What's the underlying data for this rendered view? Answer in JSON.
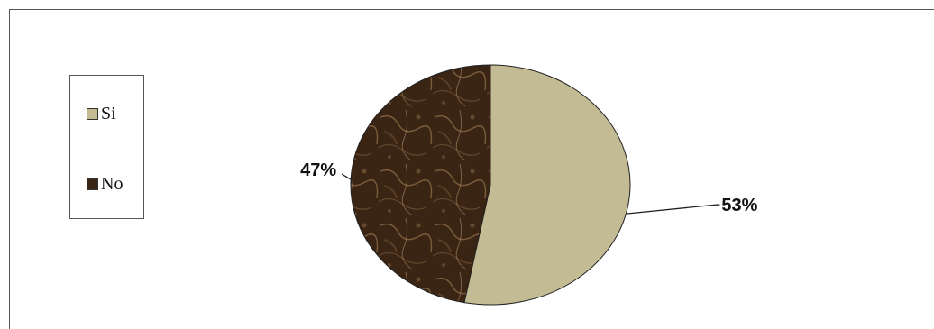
{
  "chart_data": {
    "type": "pie",
    "title": "",
    "slices": [
      {
        "label": "Si",
        "value": 53,
        "display": "53%",
        "color": "#c3bb93"
      },
      {
        "label": "No",
        "value": 47,
        "display": "47%",
        "color": "#3a2414"
      }
    ],
    "legend": {
      "position": "left",
      "items": [
        "Si",
        "No"
      ]
    }
  }
}
